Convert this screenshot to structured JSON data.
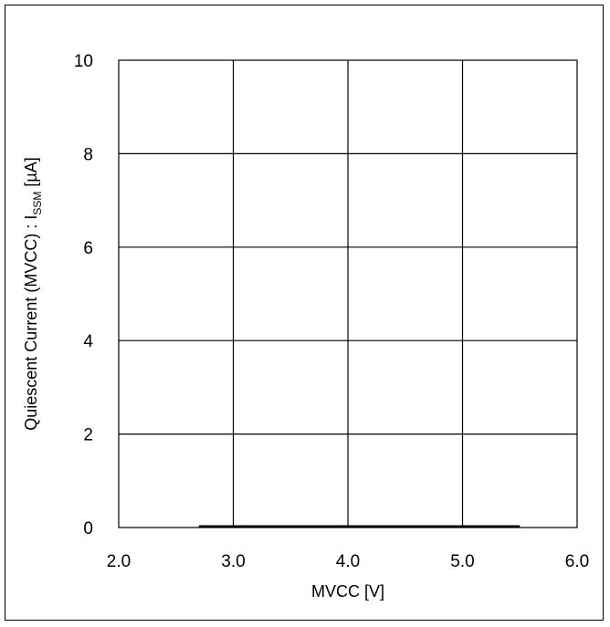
{
  "chart_data": {
    "type": "line",
    "xlabel": "MVCC [V]",
    "ylabel": {
      "main": "Quiescent Current (MVCC) : I",
      "subscript": "SSM",
      "unit": " [µA]"
    },
    "xlim": [
      2.0,
      6.0
    ],
    "ylim": [
      0,
      10
    ],
    "x_ticks": [
      2.0,
      3.0,
      4.0,
      5.0,
      6.0
    ],
    "x_tick_labels": [
      "2.0",
      "3.0",
      "4.0",
      "5.0",
      "6.0"
    ],
    "y_ticks": [
      0,
      2,
      4,
      6,
      8,
      10
    ],
    "y_tick_labels": [
      "0",
      "2",
      "4",
      "6",
      "8",
      "10"
    ],
    "grid": true,
    "series": [
      {
        "color": "#000000",
        "x": [
          2.7,
          5.5
        ],
        "y": [
          0,
          0
        ]
      }
    ]
  }
}
